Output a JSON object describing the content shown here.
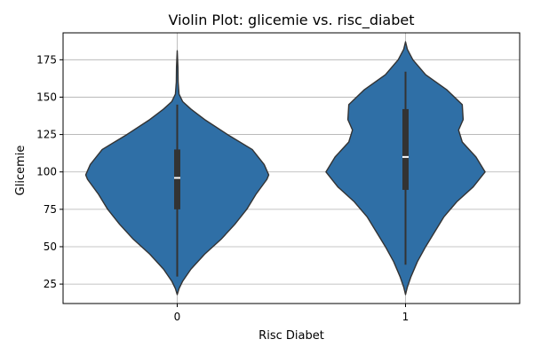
{
  "chart_data": {
    "type": "violin",
    "title": "Violin Plot: glicemie vs. risc_diabet",
    "xlabel": "Risc Diabet",
    "ylabel": "Glicemie",
    "categories": [
      "0",
      "1"
    ],
    "ylim": [
      12,
      193
    ],
    "yticks": [
      25,
      50,
      75,
      100,
      125,
      150,
      175
    ],
    "grid": true,
    "color": "#2f6fa6",
    "series": [
      {
        "category": "0",
        "min": 30,
        "q1": 75,
        "median": 96,
        "q3": 115,
        "max": 145,
        "density": [
          [
            18,
            0
          ],
          [
            22,
            0.02
          ],
          [
            27,
            0.06
          ],
          [
            35,
            0.15
          ],
          [
            45,
            0.3
          ],
          [
            55,
            0.48
          ],
          [
            65,
            0.63
          ],
          [
            75,
            0.76
          ],
          [
            85,
            0.86
          ],
          [
            95,
            0.98
          ],
          [
            98,
            1.0
          ],
          [
            105,
            0.95
          ],
          [
            115,
            0.82
          ],
          [
            125,
            0.55
          ],
          [
            135,
            0.3
          ],
          [
            142,
            0.15
          ],
          [
            147,
            0.06
          ],
          [
            152,
            0.02
          ],
          [
            160,
            0.01
          ],
          [
            170,
            0.008
          ],
          [
            181,
            0
          ]
        ]
      },
      {
        "category": "1",
        "min": 38,
        "q1": 88,
        "median": 110,
        "q3": 142,
        "max": 167,
        "density": [
          [
            18,
            0
          ],
          [
            23,
            0.02
          ],
          [
            30,
            0.06
          ],
          [
            40,
            0.13
          ],
          [
            50,
            0.22
          ],
          [
            60,
            0.32
          ],
          [
            70,
            0.42
          ],
          [
            80,
            0.56
          ],
          [
            90,
            0.74
          ],
          [
            100,
            0.87
          ],
          [
            110,
            0.77
          ],
          [
            120,
            0.62
          ],
          [
            128,
            0.58
          ],
          [
            135,
            0.63
          ],
          [
            145,
            0.62
          ],
          [
            155,
            0.45
          ],
          [
            165,
            0.22
          ],
          [
            175,
            0.08
          ],
          [
            182,
            0.02
          ],
          [
            187,
            0
          ]
        ]
      }
    ]
  }
}
